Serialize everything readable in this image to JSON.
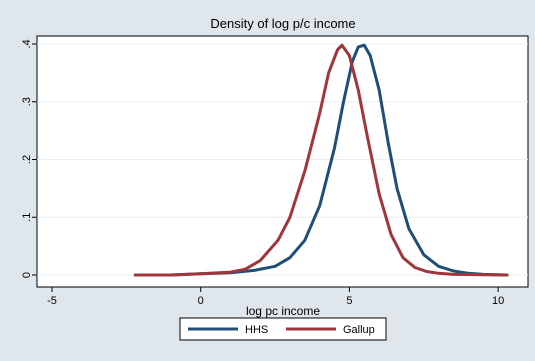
{
  "chart_data": {
    "type": "line",
    "title": "Density of log p/c income",
    "xlabel": "log pc income",
    "ylabel": "",
    "xlim": [
      -5,
      10.5
    ],
    "ylim": [
      0,
      0.4
    ],
    "x_ticks": [
      -5,
      0,
      5,
      10
    ],
    "x_tick_labels": [
      "-5",
      "0",
      "5",
      "10"
    ],
    "y_ticks": [
      0,
      0.1,
      0.2,
      0.3,
      0.4
    ],
    "y_tick_labels": [
      "0",
      ".1",
      ".2",
      ".3",
      ".4"
    ],
    "grid": true,
    "legend_position": "bottom",
    "series": [
      {
        "name": "HHS",
        "color": "#1f4e79",
        "points": [
          [
            -2.2,
            0.0
          ],
          [
            -1,
            0.0
          ],
          [
            0,
            0.002
          ],
          [
            1,
            0.004
          ],
          [
            1.8,
            0.008
          ],
          [
            2.5,
            0.015
          ],
          [
            3.0,
            0.03
          ],
          [
            3.5,
            0.06
          ],
          [
            4.0,
            0.12
          ],
          [
            4.5,
            0.22
          ],
          [
            4.8,
            0.3
          ],
          [
            5.1,
            0.37
          ],
          [
            5.3,
            0.395
          ],
          [
            5.5,
            0.398
          ],
          [
            5.7,
            0.38
          ],
          [
            6.0,
            0.32
          ],
          [
            6.3,
            0.23
          ],
          [
            6.6,
            0.15
          ],
          [
            7.0,
            0.08
          ],
          [
            7.5,
            0.035
          ],
          [
            8.0,
            0.015
          ],
          [
            8.5,
            0.007
          ],
          [
            9.0,
            0.003
          ],
          [
            9.5,
            0.001
          ],
          [
            10.3,
            0.0
          ]
        ]
      },
      {
        "name": "Gallup",
        "color": "#a0363c",
        "points": [
          [
            -2.2,
            0.0
          ],
          [
            -1,
            0.0
          ],
          [
            0,
            0.002
          ],
          [
            1,
            0.005
          ],
          [
            1.5,
            0.01
          ],
          [
            2.0,
            0.025
          ],
          [
            2.6,
            0.06
          ],
          [
            3.0,
            0.1
          ],
          [
            3.5,
            0.18
          ],
          [
            4.0,
            0.28
          ],
          [
            4.3,
            0.35
          ],
          [
            4.6,
            0.39
          ],
          [
            4.75,
            0.398
          ],
          [
            5.0,
            0.38
          ],
          [
            5.3,
            0.32
          ],
          [
            5.6,
            0.24
          ],
          [
            6.0,
            0.14
          ],
          [
            6.4,
            0.07
          ],
          [
            6.8,
            0.03
          ],
          [
            7.2,
            0.013
          ],
          [
            7.6,
            0.006
          ],
          [
            8.0,
            0.003
          ],
          [
            8.5,
            0.001
          ],
          [
            10.3,
            0.0
          ]
        ]
      }
    ]
  }
}
